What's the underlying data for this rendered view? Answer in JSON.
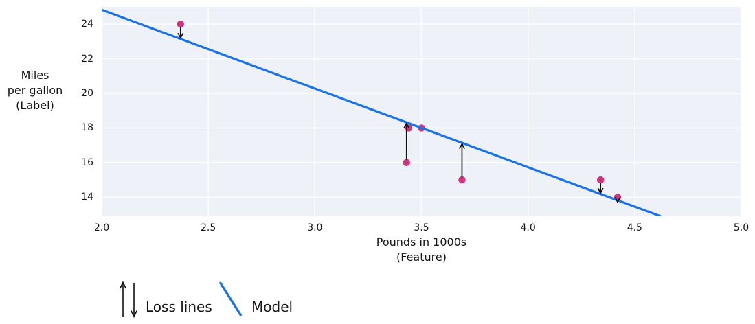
{
  "figure": {
    "ylabel": "Miles\nper gallon\n(Label)",
    "xlabel": "Pounds in 1000s\n(Feature)"
  },
  "legend": {
    "items": [
      {
        "icon": "loss-arrows-icon",
        "label": "Loss lines"
      },
      {
        "icon": "model-line-icon",
        "label": "Model"
      }
    ]
  },
  "colors": {
    "model_line": "#1a73e8",
    "point": "#d2337f",
    "plot_bg": "#eef1f7",
    "grid": "#ffffff",
    "loss_arrow": "#111111",
    "text": "#151515"
  },
  "chart_data": {
    "type": "scatter",
    "title": "",
    "xlabel": "Pounds in 1000s (Feature)",
    "ylabel": "Miles per gallon (Label)",
    "xlim": [
      2.0,
      5.0
    ],
    "ylim": [
      12.9,
      25.0
    ],
    "grid": true,
    "legend_position": "bottom-left",
    "xticks": [
      {
        "v": 2.0,
        "label": "2.0"
      },
      {
        "v": 2.5,
        "label": "2.5"
      },
      {
        "v": 3.0,
        "label": "3.0"
      },
      {
        "v": 3.5,
        "label": "3.5"
      },
      {
        "v": 4.0,
        "label": "4.0"
      },
      {
        "v": 4.5,
        "label": "4.5"
      },
      {
        "v": 5.0,
        "label": "5.0"
      }
    ],
    "yticks": [
      {
        "v": 14,
        "label": "14"
      },
      {
        "v": 16,
        "label": "16"
      },
      {
        "v": 18,
        "label": "18"
      },
      {
        "v": 20,
        "label": "20"
      },
      {
        "v": 22,
        "label": "22"
      },
      {
        "v": 24,
        "label": "24"
      }
    ],
    "points": [
      {
        "x": 2.37,
        "y": 24
      },
      {
        "x": 3.43,
        "y": 16
      },
      {
        "x": 3.44,
        "y": 18
      },
      {
        "x": 3.5,
        "y": 18
      },
      {
        "x": 3.69,
        "y": 15
      },
      {
        "x": 4.34,
        "y": 15
      },
      {
        "x": 4.42,
        "y": 14
      }
    ],
    "model_line": {
      "slope": -4.55,
      "intercept": 33.93,
      "x_start": 2.0,
      "name": "Model"
    },
    "loss_lines": [
      {
        "x": 2.37,
        "from_y": 24,
        "direction": "down"
      },
      {
        "x": 3.43,
        "from_y": 16,
        "direction": "up"
      },
      {
        "x": 3.69,
        "from_y": 15,
        "direction": "up"
      },
      {
        "x": 4.34,
        "from_y": 15,
        "direction": "down"
      },
      {
        "x": 4.42,
        "from_y": 14,
        "direction": "down"
      }
    ]
  }
}
